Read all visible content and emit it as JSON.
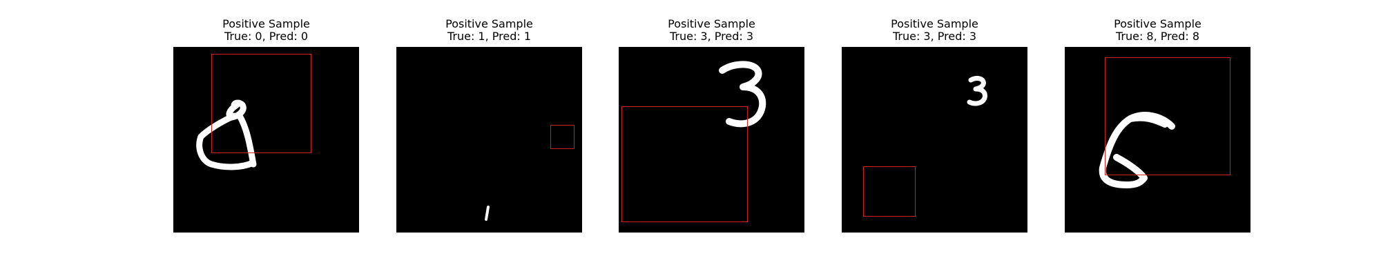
{
  "panels": [
    {
      "title": "Positive Sample",
      "subtitle": "True: 0, Pred: 0",
      "true_label": "0",
      "pred_label": "0",
      "digit_icon": "digit-0-glyph"
    },
    {
      "title": "Positive Sample",
      "subtitle": "True: 1, Pred: 1",
      "true_label": "1",
      "pred_label": "1",
      "digit_icon": "digit-1-glyph"
    },
    {
      "title": "Positive Sample",
      "subtitle": "True: 3, Pred: 3",
      "true_label": "3",
      "pred_label": "3",
      "digit_icon": "digit-3-glyph"
    },
    {
      "title": "Positive Sample",
      "subtitle": "True: 3, Pred: 3",
      "true_label": "3",
      "pred_label": "3",
      "digit_icon": "digit-3-glyph"
    },
    {
      "title": "Positive Sample",
      "subtitle": "True: 8, Pred: 8",
      "true_label": "8",
      "pred_label": "8",
      "digit_icon": "digit-8-glyph"
    }
  ],
  "colors": {
    "background": "#ffffff",
    "image_background": "#000000",
    "digit_stroke": "#ffffff",
    "bbox_stroke": "#cc1f1f",
    "text": "#000000"
  }
}
